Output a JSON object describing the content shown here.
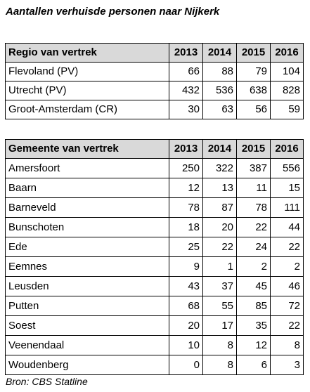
{
  "title": "Aantallen verhuisde personen naar Nijkerk",
  "source": "Bron: CBS Statline",
  "regio_table": {
    "headers": [
      "Regio van vertrek",
      "2013",
      "2014",
      "2015",
      "2016"
    ],
    "rows": [
      [
        "Flevoland (PV)",
        "66",
        "88",
        "79",
        "104"
      ],
      [
        "Utrecht (PV)",
        "432",
        "536",
        "638",
        "828"
      ],
      [
        "Groot-Amsterdam (CR)",
        "30",
        "63",
        "56",
        "59"
      ]
    ]
  },
  "gemeente_table": {
    "headers": [
      "Gemeente van vertrek",
      "2013",
      "2014",
      "2015",
      "2016"
    ],
    "rows": [
      [
        "Amersfoort",
        "250",
        "322",
        "387",
        "556"
      ],
      [
        "Baarn",
        "12",
        "13",
        "11",
        "15"
      ],
      [
        "Barneveld",
        "78",
        "87",
        "78",
        "111"
      ],
      [
        "Bunschoten",
        "18",
        "20",
        "22",
        "44"
      ],
      [
        "Ede",
        "25",
        "22",
        "24",
        "22"
      ],
      [
        "Eemnes",
        "9",
        "1",
        "2",
        "2"
      ],
      [
        "Leusden",
        "43",
        "37",
        "45",
        "46"
      ],
      [
        "Putten",
        "68",
        "55",
        "85",
        "72"
      ],
      [
        "Soest",
        "20",
        "17",
        "35",
        "22"
      ],
      [
        "Veenendaal",
        "10",
        "8",
        "12",
        "8"
      ],
      [
        "Woudenberg",
        "0",
        "8",
        "6",
        "3"
      ]
    ]
  },
  "colors": {
    "header_bg": "#d9d9d9",
    "border": "#000000"
  }
}
